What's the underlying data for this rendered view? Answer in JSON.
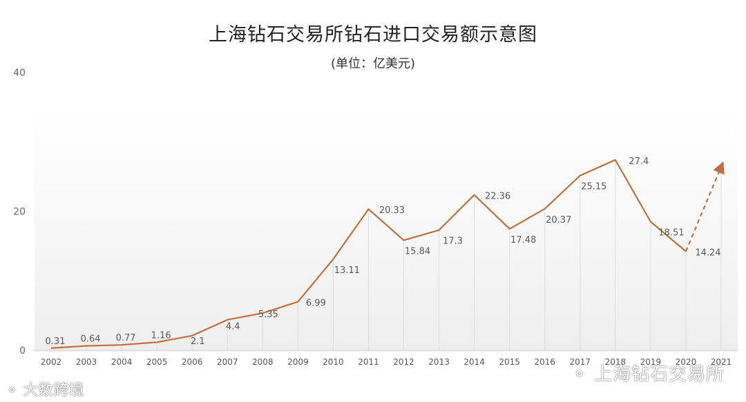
{
  "chart_data": {
    "type": "line",
    "title": "上海钻石交易所钻石进口交易额示意图",
    "subtitle": "(单位：亿美元)",
    "categories": [
      "2002",
      "2003",
      "2004",
      "2005",
      "2006",
      "2007",
      "2008",
      "2009",
      "2010",
      "2011",
      "2012",
      "2013",
      "2014",
      "2015",
      "2016",
      "2017",
      "2018",
      "2019",
      "2020",
      "2021"
    ],
    "series": [
      {
        "values": [
          0.31,
          0.64,
          0.77,
          1.16,
          2.1,
          4.4,
          5.35,
          6.99,
          13.11,
          20.33,
          15.84,
          17.3,
          22.36,
          17.48,
          20.37,
          25.15,
          27.4,
          18.51,
          14.24,
          null
        ],
        "labels": [
          "0.31",
          "0.64",
          "0.77",
          "1.16",
          "2.1",
          "4.4",
          "5.35",
          "6.99",
          "13.11",
          "20.33",
          "15.84",
          "17.3",
          "22.36",
          "17.48",
          "20.37",
          "25.15",
          "27.4",
          "18.51",
          "14.24",
          ""
        ],
        "color": "#c0703a"
      }
    ],
    "projection": {
      "from": "2020",
      "to": "2021",
      "value": 27,
      "style": "dashed-arrow"
    },
    "ylim": [
      0,
      40
    ],
    "yticks": [
      "0",
      "20",
      "40"
    ],
    "grid": false,
    "xlabel": "",
    "ylabel": ""
  },
  "watermarks": {
    "bottom_right": "上海钻石交易所",
    "bottom_left": "大数跨境"
  }
}
